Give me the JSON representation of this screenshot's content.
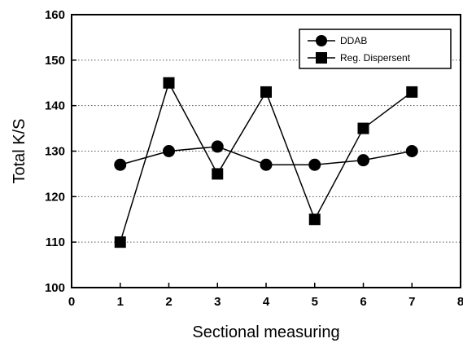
{
  "chart_data": {
    "type": "line",
    "title": "",
    "xlabel": "Sectional measuring",
    "ylabel": "Total K/S",
    "xlim": [
      0,
      8
    ],
    "ylim": [
      100,
      160
    ],
    "xticks": [
      0,
      1,
      2,
      3,
      4,
      5,
      6,
      7,
      8
    ],
    "yticks": [
      100,
      110,
      120,
      130,
      140,
      150,
      160
    ],
    "grid": "horizontal dotted",
    "legend_position": "top-right",
    "x": [
      1,
      2,
      3,
      4,
      5,
      6,
      7
    ],
    "series": [
      {
        "name": "DDAB",
        "marker": "circle",
        "values": [
          127,
          130,
          131,
          127,
          127,
          128,
          130
        ]
      },
      {
        "name": "Reg. Dispersent",
        "marker": "square",
        "values": [
          110,
          145,
          125,
          143,
          115,
          135,
          143
        ]
      }
    ]
  }
}
